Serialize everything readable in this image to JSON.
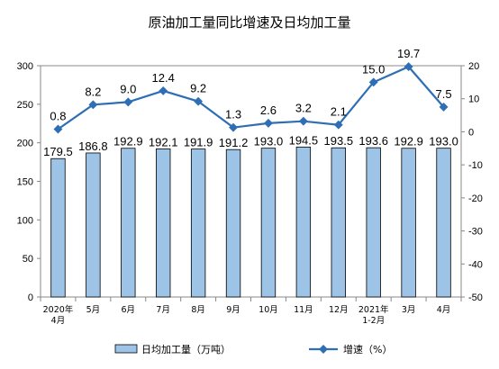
{
  "chart_data": {
    "type": "bar",
    "title": "原油加工量同比增速及日均加工量",
    "categories": [
      [
        "2020年",
        "4月"
      ],
      [
        "5月"
      ],
      [
        "6月"
      ],
      [
        "7月"
      ],
      [
        "8月"
      ],
      [
        "9月"
      ],
      [
        "10月"
      ],
      [
        "11月"
      ],
      [
        "12月"
      ],
      [
        "2021年",
        "1-2月"
      ],
      [
        "3月"
      ],
      [
        "4月"
      ]
    ],
    "series": [
      {
        "name": "日均加工量（万吨）",
        "type": "bar",
        "axis": "left",
        "values": [
          179.5,
          186.8,
          192.9,
          192.1,
          191.9,
          191.2,
          193.0,
          194.5,
          193.5,
          193.6,
          192.9,
          193.0
        ],
        "labels": [
          "179.5",
          "186.8",
          "192.9",
          "192.1",
          "191.9",
          "191.2",
          "193.0",
          "194.5",
          "193.5",
          "193.6",
          "192.9",
          "193.0"
        ],
        "color": "#9dc3e6",
        "stroke": "#000000"
      },
      {
        "name": "增速（%）",
        "type": "line",
        "axis": "right",
        "values": [
          0.8,
          8.2,
          9.0,
          12.4,
          9.2,
          1.3,
          2.6,
          3.2,
          2.1,
          15.0,
          19.7,
          7.5
        ],
        "labels": [
          "0.8",
          "8.2",
          "9.0",
          "12.4",
          "9.2",
          "1.3",
          "2.6",
          "3.2",
          "2.1",
          "15.0",
          "19.7",
          "7.5"
        ],
        "color": "#2e6eb5"
      }
    ],
    "y_left": {
      "min": 0,
      "max": 300,
      "ticks": [
        "0",
        "50",
        "100",
        "150",
        "200",
        "250",
        "300"
      ]
    },
    "y_right": {
      "min": -50,
      "max": 20,
      "ticks": [
        "-50",
        "-40",
        "-30",
        "-20",
        "-10",
        "0",
        "10",
        "20"
      ]
    },
    "grid": false,
    "legend_position": "bottom"
  }
}
